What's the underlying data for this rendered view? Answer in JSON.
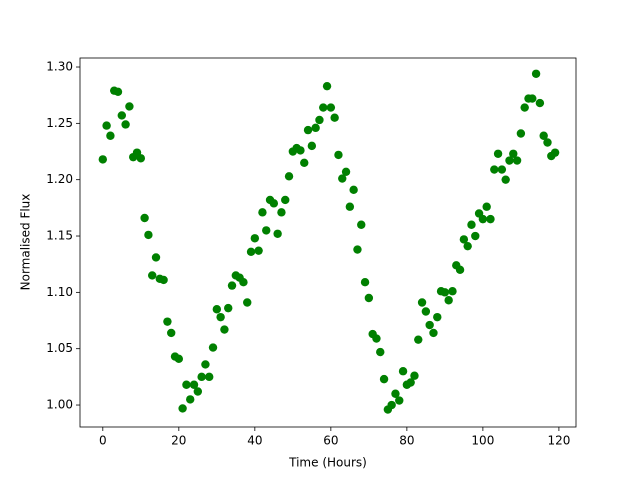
{
  "chart_data": {
    "type": "scatter",
    "x_label": "Time (Hours)",
    "y_label": "Normalised Flux",
    "color": "#008000",
    "x": [
      0,
      1,
      2,
      3,
      4,
      5,
      6,
      7,
      8,
      9,
      10,
      11,
      12,
      13,
      14,
      15,
      16,
      17,
      18,
      19,
      20,
      21,
      22,
      23,
      24,
      25,
      26,
      27,
      28,
      29,
      30,
      31,
      32,
      33,
      34,
      35,
      36,
      37,
      38,
      39,
      40,
      41,
      42,
      43,
      44,
      45,
      46,
      47,
      48,
      49,
      50,
      51,
      52,
      53,
      54,
      55,
      56,
      57,
      58,
      59,
      60,
      61,
      62,
      63,
      64,
      65,
      66,
      67,
      68,
      69,
      70,
      71,
      72,
      73,
      74,
      75,
      76,
      77,
      78,
      79,
      80,
      81,
      82,
      83,
      84,
      85,
      86,
      87,
      88,
      89,
      90,
      91,
      92,
      93,
      94,
      95,
      96,
      97,
      98,
      99,
      100,
      101,
      102,
      103,
      104,
      105,
      106,
      107,
      108,
      109,
      110,
      111,
      112,
      113,
      114,
      115,
      116,
      117,
      118,
      119
    ],
    "values": [
      1.218,
      1.248,
      1.239,
      1.279,
      1.278,
      1.257,
      1.249,
      1.265,
      1.22,
      1.224,
      1.219,
      1.166,
      1.151,
      1.115,
      1.131,
      1.112,
      1.111,
      1.074,
      1.064,
      1.043,
      1.041,
      0.997,
      1.018,
      1.005,
      1.018,
      1.012,
      1.025,
      1.036,
      1.025,
      1.051,
      1.085,
      1.078,
      1.067,
      1.086,
      1.106,
      1.115,
      1.113,
      1.109,
      1.091,
      1.136,
      1.148,
      1.137,
      1.171,
      1.155,
      1.182,
      1.179,
      1.152,
      1.171,
      1.182,
      1.203,
      1.225,
      1.228,
      1.226,
      1.215,
      1.244,
      1.23,
      1.246,
      1.253,
      1.264,
      1.283,
      1.264,
      1.255,
      1.222,
      1.201,
      1.207,
      1.176,
      1.191,
      1.138,
      1.16,
      1.109,
      1.095,
      1.063,
      1.059,
      1.047,
      1.023,
      0.996,
      1.0,
      1.01,
      1.004,
      1.03,
      1.018,
      1.02,
      1.026,
      1.058,
      1.091,
      1.083,
      1.071,
      1.064,
      1.078,
      1.101,
      1.1,
      1.093,
      1.101,
      1.124,
      1.12,
      1.147,
      1.141,
      1.16,
      1.15,
      1.17,
      1.165,
      1.176,
      1.165,
      1.209,
      1.223,
      1.209,
      1.2,
      1.217,
      1.223,
      1.217,
      1.241,
      1.264,
      1.272,
      1.272,
      1.294,
      1.268,
      1.239,
      1.233,
      1.221,
      1.224
    ],
    "xlim": [
      -6,
      124.5
    ],
    "xticks": [
      0,
      20,
      40,
      60,
      80,
      100,
      120
    ],
    "ylim": [
      0.9805,
      1.308
    ],
    "yticks": [
      {
        "value": 1.0,
        "label": "1.00"
      },
      1.05,
      {
        "value": 1.1,
        "label": "1.10"
      },
      1.15,
      {
        "value": 1.2,
        "label": "1.20"
      },
      1.25,
      {
        "value": 1.3,
        "label": "1.30"
      }
    ]
  }
}
